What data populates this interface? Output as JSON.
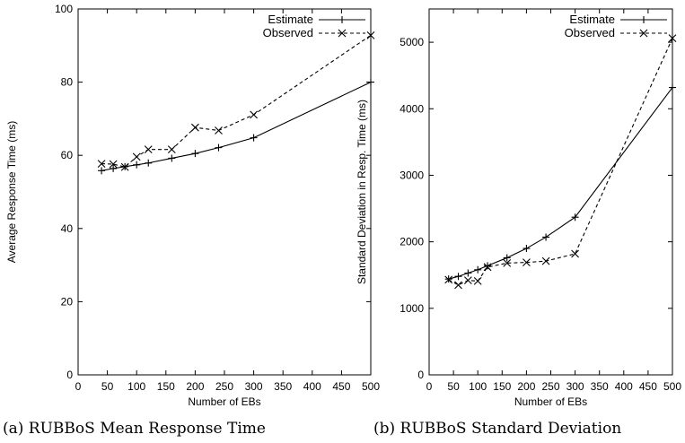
{
  "chart_data": [
    {
      "type": "line",
      "caption": "(a) RUBBoS Mean Response Time",
      "xlabel": "Number of EBs",
      "ylabel": "Average Response Time (ms)",
      "xlim": [
        0,
        500
      ],
      "ylim": [
        0,
        100
      ],
      "xticks": [
        "0",
        "50",
        "100",
        "150",
        "200",
        "250",
        "300",
        "350",
        "400",
        "450",
        "500"
      ],
      "yticks": [
        "0",
        "20",
        "40",
        "60",
        "80",
        "100"
      ],
      "xtick_values": [
        0,
        50,
        100,
        150,
        200,
        250,
        300,
        350,
        400,
        450,
        500
      ],
      "ytick_values": [
        0,
        20,
        40,
        60,
        80,
        100
      ],
      "legend_position": "top-right",
      "series": [
        {
          "name": "Estimate",
          "style": "solid",
          "marker": "plus",
          "points": [
            [
              40,
              55.8
            ],
            [
              60,
              56.4
            ],
            [
              80,
              56.9
            ],
            [
              100,
              57.4
            ],
            [
              120,
              57.9
            ],
            [
              160,
              59.2
            ],
            [
              200,
              60.5
            ],
            [
              240,
              62.1
            ],
            [
              300,
              64.8
            ],
            [
              500,
              80.0
            ]
          ]
        },
        {
          "name": "Observed",
          "style": "dashed",
          "marker": "cross",
          "points": [
            [
              40,
              57.7
            ],
            [
              60,
              57.6
            ],
            [
              80,
              56.8
            ],
            [
              100,
              59.6
            ],
            [
              120,
              61.6
            ],
            [
              160,
              61.6
            ],
            [
              200,
              67.6
            ],
            [
              240,
              66.8
            ],
            [
              300,
              71.1
            ],
            [
              500,
              92.8
            ]
          ]
        }
      ]
    },
    {
      "type": "line",
      "caption": "(b) RUBBoS Standard Deviation",
      "xlabel": "Number of EBs",
      "ylabel": "Standard Deviation in Resp. Time (ms)",
      "xlim": [
        0,
        500
      ],
      "ylim": [
        0,
        5500
      ],
      "xticks": [
        "0",
        "50",
        "100",
        "150",
        "200",
        "250",
        "300",
        "350",
        "400",
        "450",
        "500"
      ],
      "yticks": [
        "0",
        "1000",
        "2000",
        "3000",
        "4000",
        "5000"
      ],
      "xtick_values": [
        0,
        50,
        100,
        150,
        200,
        250,
        300,
        350,
        400,
        450,
        500
      ],
      "ytick_values": [
        0,
        1000,
        2000,
        3000,
        4000,
        5000
      ],
      "legend_position": "top-right",
      "series": [
        {
          "name": "Estimate",
          "style": "solid",
          "marker": "plus",
          "points": [
            [
              40,
              1440
            ],
            [
              60,
              1480
            ],
            [
              80,
              1530
            ],
            [
              100,
              1580
            ],
            [
              120,
              1640
            ],
            [
              160,
              1760
            ],
            [
              200,
              1900
            ],
            [
              240,
              2070
            ],
            [
              300,
              2370
            ],
            [
              500,
              4320
            ]
          ]
        },
        {
          "name": "Observed",
          "style": "dashed",
          "marker": "cross",
          "points": [
            [
              40,
              1430
            ],
            [
              60,
              1350
            ],
            [
              80,
              1420
            ],
            [
              100,
              1410
            ],
            [
              120,
              1620
            ],
            [
              160,
              1680
            ],
            [
              200,
              1690
            ],
            [
              240,
              1710
            ],
            [
              300,
              1820
            ],
            [
              500,
              5060
            ]
          ]
        }
      ]
    }
  ]
}
